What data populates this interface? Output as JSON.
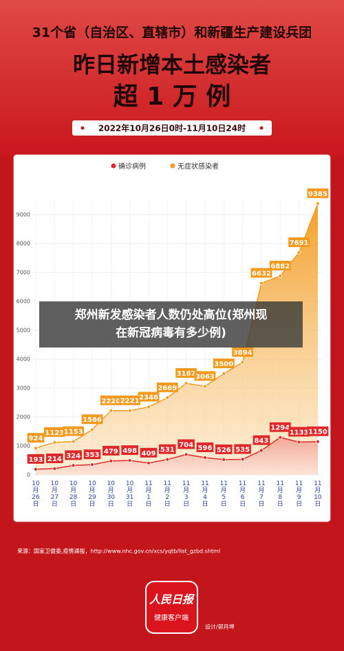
{
  "header": {
    "line1": "31个省（自治区、直辖市）和新疆生产建设兵团",
    "line2": "昨日新增本土感染者",
    "line3": "超 1 万 例",
    "period": "2022年10月26日0时-11月10日24时"
  },
  "chart_data": {
    "type": "line",
    "categories": [
      "10\n月\n26\n日",
      "10\n月\n27\n日",
      "10\n月\n28\n日",
      "10\n月\n29\n日",
      "10\n月\n30\n日",
      "10\n月\n31\n日",
      "11\n月\n1\n日",
      "11\n月\n2\n日",
      "11\n月\n3\n日",
      "11\n月\n4\n日",
      "11\n月\n5\n日",
      "11\n月\n6\n日",
      "11\n月\n7\n日",
      "11\n月\n8\n日",
      "11\n月\n9\n日",
      "11\n月\n10\n日"
    ],
    "series": [
      {
        "name": "确诊病例",
        "color": "#e0282a",
        "values": [
          193,
          214,
          324,
          353,
          479,
          498,
          409,
          531,
          704,
          596,
          526,
          535,
          843,
          1294,
          1133,
          1150
        ]
      },
      {
        "name": "无症状感染者",
        "color": "#f39a1e",
        "values": [
          924,
          1123,
          1153,
          1566,
          2220,
          2221,
          2346,
          2669,
          3167,
          3063,
          3500,
          3894,
          6632,
          6882,
          7691,
          9385
        ]
      }
    ],
    "ylim": [
      0,
      9500
    ],
    "yticks": [
      0,
      1000,
      2000,
      3000,
      4000,
      5000,
      6000,
      7000,
      8000,
      9000
    ],
    "grid": true,
    "legend": "top"
  },
  "overlay": {
    "line1": "郑州新发感染者人数仍处高位(郑州现",
    "line2": "在新冠病毒有多少例)"
  },
  "footer": {
    "source": "来源：国家卫健委,疫情通报，http://www.nhc.gov.cn/xcs/yqtb/list_gzbd.shtml",
    "logo": "人民日报",
    "app": "健康客户端",
    "design": "设计/郭月坤"
  }
}
